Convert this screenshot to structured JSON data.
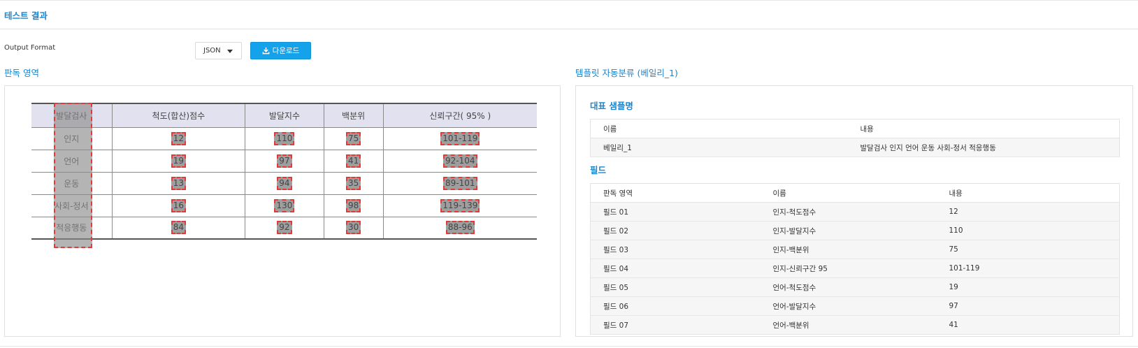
{
  "page": {
    "title": "테스트 결과"
  },
  "output": {
    "label": "Output Format",
    "format": "JSON",
    "download_label": "다운로드"
  },
  "left_section": {
    "title": "판독 영역"
  },
  "right_section": {
    "title": "템플릿 자동분류 (베일리_1)"
  },
  "scan": {
    "headers": [
      "발달검사",
      "척도(합산)점수",
      "발달지수",
      "백분위",
      "신뢰구간( 95% )"
    ],
    "rows": [
      [
        "인지",
        "12",
        "110",
        "75",
        "101-119"
      ],
      [
        "언어",
        "19",
        "97",
        "41",
        "92-104"
      ],
      [
        "운동",
        "13",
        "94",
        "35",
        "89-101"
      ],
      [
        "사회-정서",
        "16",
        "130",
        "98",
        "119-139"
      ],
      [
        "적응행동",
        "84",
        "92",
        "30",
        "88-96"
      ]
    ]
  },
  "sample": {
    "title": "대표 샘플명",
    "headers": [
      "이름",
      "내용"
    ],
    "rows": [
      [
        "베일리_1",
        "발달검사 인지 언어 운동 사회-정서 적응행동"
      ]
    ]
  },
  "fields": {
    "title": "필드",
    "headers": [
      "판독 영역",
      "이름",
      "내용"
    ],
    "rows": [
      [
        "필드 01",
        "인지-척도점수",
        "12"
      ],
      [
        "필드 02",
        "인지-발달지수",
        "110"
      ],
      [
        "필드 03",
        "인지-백분위",
        "75"
      ],
      [
        "필드 04",
        "인지-신뢰구간 95",
        "101-119"
      ],
      [
        "필드 05",
        "언어-척도점수",
        "19"
      ],
      [
        "필드 06",
        "언어-발달지수",
        "97"
      ],
      [
        "필드 07",
        "언어-백분위",
        "41"
      ]
    ]
  },
  "colors": {
    "accent": "#1a86d0",
    "button": "#14a3eb",
    "highlight": "#e03a3a"
  }
}
